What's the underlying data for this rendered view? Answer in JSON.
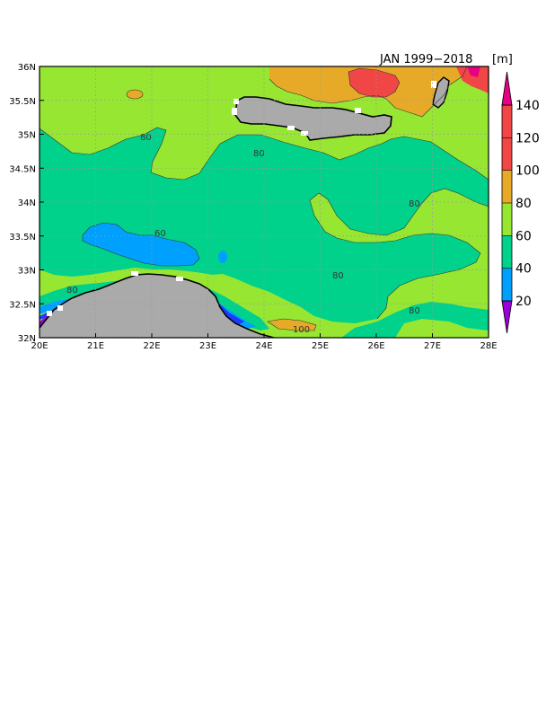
{
  "map": {
    "title": "JAN 1999−2018",
    "units": "[m]",
    "x_axis": {
      "range": [
        20,
        28
      ],
      "ticks": [
        "20E",
        "21E",
        "22E",
        "23E",
        "24E",
        "25E",
        "26E",
        "27E",
        "28E"
      ]
    },
    "y_axis": {
      "range": [
        32,
        36
      ],
      "ticks": [
        "32N",
        "32.5N",
        "33N",
        "33.5N",
        "34N",
        "34.5N",
        "35N",
        "35.5N",
        "36N"
      ]
    },
    "grid": "dotted",
    "contour_labels": [
      "80",
      "80",
      "80",
      "60",
      "80",
      "80",
      "80",
      "100"
    ],
    "colorbar": {
      "placement": "right",
      "labels": [
        "20",
        "40",
        "60",
        "80",
        "100",
        "120",
        "140"
      ],
      "colors": [
        "#9b00d6",
        "#00a0ff",
        "#00d28c",
        "#96e632",
        "#e6aa28",
        "#f04646",
        "#e60082"
      ],
      "overflow_colors": {
        "low": "#9b00d6",
        "high": "#e60082"
      }
    },
    "colors": {
      "land": "#aaaaaa",
      "c20_40": "#9b00d6",
      "c40_60": "#00a0ff",
      "c60_80": "#00d28c",
      "c80_100": "#96e632",
      "c100_120": "#e6aa28",
      "c120_140": "#f04646",
      "c140_plus": "#e60082",
      "dark_blue": "#1e3cff"
    }
  }
}
